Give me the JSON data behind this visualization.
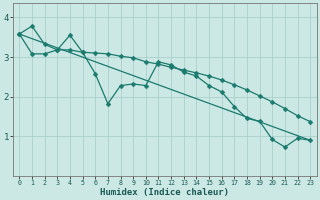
{
  "xlabel": "Humidex (Indice chaleur)",
  "bg_color": "#cce8e4",
  "grid_color": "#aacfcb",
  "line_color": "#1a7a6e",
  "xlim": [
    -0.5,
    23.5
  ],
  "ylim": [
    0.0,
    4.35
  ],
  "yticks": [
    1,
    2,
    3,
    4
  ],
  "xticks": [
    0,
    1,
    2,
    3,
    4,
    5,
    6,
    7,
    8,
    9,
    10,
    11,
    12,
    13,
    14,
    15,
    16,
    17,
    18,
    19,
    20,
    21,
    22,
    23
  ],
  "line1_x": [
    0,
    1,
    2,
    3,
    4,
    5,
    6,
    7,
    8,
    9,
    10,
    11,
    12,
    13,
    14,
    15,
    16,
    17,
    18,
    19,
    20,
    21,
    22,
    23
  ],
  "line1_y": [
    3.58,
    3.78,
    3.32,
    3.18,
    3.55,
    3.12,
    2.58,
    1.82,
    2.28,
    2.32,
    2.28,
    2.88,
    2.8,
    2.62,
    2.52,
    2.28,
    2.12,
    1.75,
    1.45,
    1.38,
    0.92,
    0.73,
    0.95,
    0.9
  ],
  "line2_x": [
    0,
    1,
    2,
    3,
    4,
    5,
    6,
    7,
    8,
    9,
    10,
    11,
    12,
    13,
    14,
    15,
    16,
    17,
    18,
    19,
    20,
    21,
    22,
    23
  ],
  "line2_y": [
    3.58,
    3.08,
    3.08,
    3.18,
    3.18,
    3.12,
    3.1,
    3.08,
    3.02,
    2.98,
    2.88,
    2.82,
    2.74,
    2.67,
    2.6,
    2.52,
    2.42,
    2.3,
    2.17,
    2.02,
    1.87,
    1.7,
    1.52,
    1.37
  ],
  "line3_x": [
    0,
    23
  ],
  "line3_y": [
    3.58,
    0.9
  ],
  "marker_size": 2.5,
  "linewidth": 0.9
}
